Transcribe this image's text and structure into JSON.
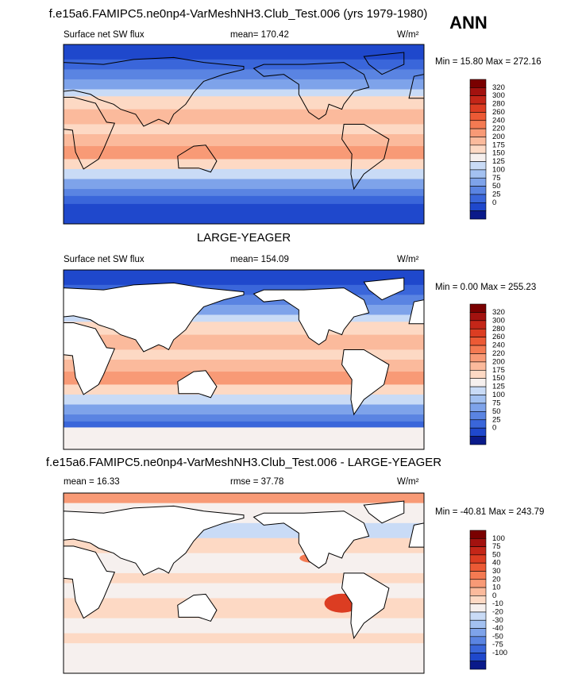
{
  "header": {
    "season": "ANN"
  },
  "panels": [
    {
      "title": "f.e15a6.FAMIPC5.ne0np4-VarMeshNH3.Club_Test.006 (yrs 1979-1980)",
      "left": "Surface net SW flux",
      "center": "mean= 170.42",
      "right": "W/m²",
      "range": "Min =  15.80 Max = 272.16",
      "colorbar": {
        "labels": [
          320,
          300,
          280,
          260,
          240,
          220,
          200,
          175,
          150,
          125,
          100,
          75,
          50,
          25,
          0
        ],
        "colors": [
          "#7a0000",
          "#a3120f",
          "#c42618",
          "#dc3d22",
          "#ec5a35",
          "#f47a52",
          "#f89a76",
          "#fbba9c",
          "#fdd9c4",
          "#f6f0ee",
          "#c9dbf6",
          "#a3c1f1",
          "#7ea3ea",
          "#5a84e2",
          "#3a66da",
          "#1f48cc",
          "#0a1a8a"
        ]
      }
    },
    {
      "title": "LARGE-YEAGER",
      "left": "Surface net SW flux",
      "center": "mean= 154.09",
      "right": "W/m²",
      "range": "Min =   0.00 Max = 255.23",
      "colorbar": {
        "labels": [
          320,
          300,
          280,
          260,
          240,
          220,
          200,
          175,
          150,
          125,
          100,
          75,
          50,
          25,
          0
        ],
        "colors": [
          "#7a0000",
          "#a3120f",
          "#c42618",
          "#dc3d22",
          "#ec5a35",
          "#f47a52",
          "#f89a76",
          "#fbba9c",
          "#fdd9c4",
          "#f6f0ee",
          "#c9dbf6",
          "#a3c1f1",
          "#7ea3ea",
          "#5a84e2",
          "#3a66da",
          "#1f48cc",
          "#0a1a8a"
        ]
      }
    },
    {
      "title": "f.e15a6.FAMIPC5.ne0np4-VarMeshNH3.Club_Test.006 - LARGE-YEAGER",
      "left": "mean =  16.33",
      "center": "rmse =  37.78",
      "right": "W/m²",
      "range": "Min = -40.81 Max = 243.79",
      "colorbar": {
        "labels": [
          100,
          75,
          50,
          40,
          30,
          20,
          10,
          0,
          -10,
          -20,
          -30,
          -40,
          -50,
          -75,
          -100
        ],
        "colors": [
          "#7a0000",
          "#a3120f",
          "#c42618",
          "#dc3d22",
          "#ec5a35",
          "#f47a52",
          "#f89a76",
          "#fbba9c",
          "#fdd9c4",
          "#f6f0ee",
          "#c9dbf6",
          "#a3c1f1",
          "#7ea3ea",
          "#5a84e2",
          "#3a66da",
          "#1f48cc",
          "#0a1a8a"
        ]
      }
    }
  ]
}
